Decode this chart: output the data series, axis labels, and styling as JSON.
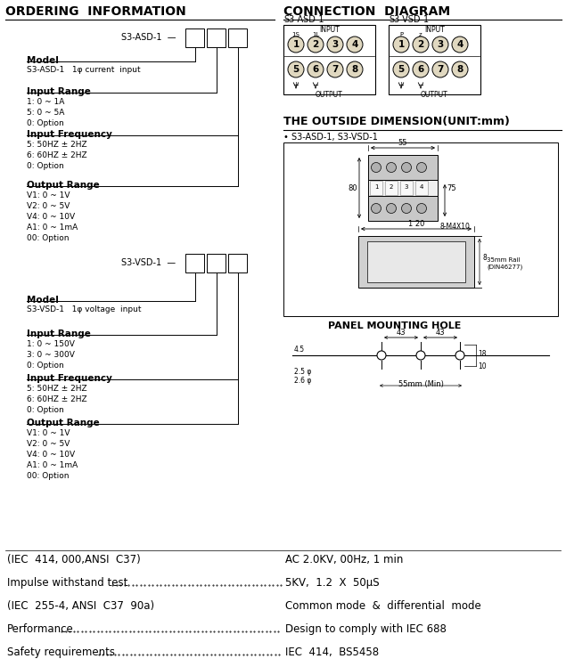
{
  "bg_color": "#ffffff",
  "fig_width": 6.35,
  "fig_height": 7.49,
  "left": {
    "title": "ORDERING  INFORMATION",
    "asd_label": "S3-ASD-1",
    "asd_model_bold": "Model",
    "asd_model_text": "S3-ASD-1   1φ current  input",
    "asd_ir_bold": "Input Range",
    "asd_ir": [
      "1: 0 ~ 1A",
      "5: 0 ~ 5A",
      "0: Option"
    ],
    "asd_if_bold": "Input Frequency",
    "asd_if": [
      "5: 50HZ ± 2HZ",
      "6: 60HZ ± 2HZ",
      "0: Option"
    ],
    "asd_or_bold": "Output Range",
    "asd_or": [
      "V1: 0 ~ 1V",
      "V2: 0 ~ 5V",
      "V4: 0 ~ 10V",
      "A1: 0 ~ 1mA",
      "00: Option"
    ],
    "vsd_label": "S3-VSD-1",
    "vsd_model_bold": "Model",
    "vsd_model_text": "S3-VSD-1   1φ voltage  input",
    "vsd_ir_bold": "Input Range",
    "vsd_ir": [
      "1: 0 ~ 150V",
      "3: 0 ~ 300V",
      "0: Option"
    ],
    "vsd_if_bold": "Input Frequency",
    "vsd_if": [
      "5: 50HZ ± 2HZ",
      "6: 60HZ ± 2HZ",
      "0: Option"
    ],
    "vsd_or_bold": "Output Range",
    "vsd_or": [
      "V1: 0 ~ 1V",
      "V2: 0 ~ 5V",
      "V4: 0 ~ 10V",
      "A1: 0 ~ 1mA",
      "00: Option"
    ]
  },
  "right": {
    "conn_title": "CONNECTION  DIAGRAM",
    "asd_label": "S3-ASD-1",
    "vsd_label": "S3-VSD-1",
    "dim_title": "THE OUTSIDE DIMENSION(UNIT:mm)",
    "dim_sub": "• S3-ASD-1, S3-VSD-1",
    "panel_title": "PANEL MOUNTING HOLE"
  },
  "bottom": [
    {
      "left": "(IEC  414, 000,ANSI  C37)",
      "dots": false,
      "right": "AC 2.0KV, 00Hz, 1 min"
    },
    {
      "left": "Impulse withstand test",
      "dots": true,
      "right": "5KV,  1.2  X  50μS"
    },
    {
      "left": "(IEC  255-4, ANSI  C37  90a)",
      "dots": false,
      "right": "Common mode  &  differential  mode"
    },
    {
      "left": "Performance",
      "dots": true,
      "right": "Design to comply with IEC 688"
    },
    {
      "left": "Safety requirements",
      "dots": true,
      "right": "IEC  414,  BS5458"
    }
  ]
}
